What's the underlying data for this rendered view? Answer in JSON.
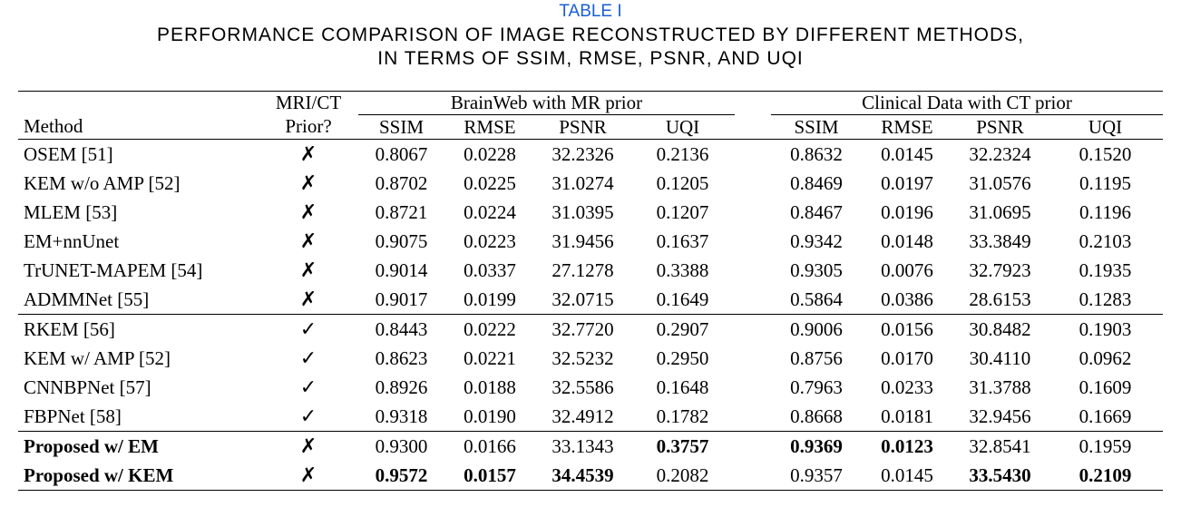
{
  "caption": {
    "label": "TABLE I",
    "title_lines": [
      "PERFORMANCE COMPARISON OF IMAGE RECONSTRUCTED BY DIFFERENT METHODS,",
      "IN TERMS OF SSIM, RMSE, PSNR, AND UQI"
    ]
  },
  "table": {
    "header": {
      "row1": {
        "prior": "MRI/CT",
        "groups": [
          "BrainWeb with MR prior",
          "Clinical Data with CT prior"
        ]
      },
      "row2": {
        "method": "Method",
        "prior": "Prior?",
        "metrics": [
          "SSIM",
          "RMSE",
          "PSNR",
          "UQI",
          "SSIM",
          "RMSE",
          "PSNR",
          "UQI"
        ]
      }
    },
    "rows": [
      {
        "method": "OSEM [51]",
        "prior": "✗",
        "values": [
          "0.8067",
          "0.0228",
          "32.2326",
          "0.2136",
          "0.8632",
          "0.0145",
          "32.2324",
          "0.1520"
        ]
      },
      {
        "method": "KEM w/o AMP [52]",
        "prior": "✗",
        "values": [
          "0.8702",
          "0.0225",
          "31.0274",
          "0.1205",
          "0.8469",
          "0.0197",
          "31.0576",
          "0.1195"
        ]
      },
      {
        "method": "MLEM [53]",
        "prior": "✗",
        "values": [
          "0.8721",
          "0.0224",
          "31.0395",
          "0.1207",
          "0.8467",
          "0.0196",
          "31.0695",
          "0.1196"
        ]
      },
      {
        "method": "EM+nnUnet",
        "prior": "✗",
        "values": [
          "0.9075",
          "0.0223",
          "31.9456",
          "0.1637",
          "0.9342",
          "0.0148",
          "33.3849",
          "0.2103"
        ]
      },
      {
        "method": "TrUNET-MAPEM [54]",
        "prior": "✗",
        "values": [
          "0.9014",
          "0.0337",
          "27.1278",
          "0.3388",
          "0.9305",
          "0.0076",
          "32.7923",
          "0.1935"
        ]
      },
      {
        "method": "ADMMNet [55]",
        "prior": "✗",
        "values": [
          "0.9017",
          "0.0199",
          "32.0715",
          "0.1649",
          "0.5864",
          "0.0386",
          "28.6153",
          "0.1283"
        ]
      },
      {
        "method": "RKEM [56]",
        "prior": "✓",
        "values": [
          "0.8443",
          "0.0222",
          "32.7720",
          "0.2907",
          "0.9006",
          "0.0156",
          "30.8482",
          "0.1903"
        ]
      },
      {
        "method": "KEM w/ AMP [52]",
        "prior": "✓",
        "values": [
          "0.8623",
          "0.0221",
          "32.5232",
          "0.2950",
          "0.8756",
          "0.0170",
          "30.4110",
          "0.0962"
        ]
      },
      {
        "method": "CNNBPNet [57]",
        "prior": "✓",
        "values": [
          "0.8926",
          "0.0188",
          "32.5586",
          "0.1648",
          "0.7963",
          "0.0233",
          "31.3788",
          "0.1609"
        ]
      },
      {
        "method": "FBPNet [58]",
        "prior": "✓",
        "values": [
          "0.9318",
          "0.0190",
          "32.4912",
          "0.1782",
          "0.8668",
          "0.0181",
          "32.9456",
          "0.1669"
        ]
      },
      {
        "method": "Proposed w/ EM",
        "prior": "✗",
        "values": [
          "0.9300",
          "0.0166",
          "33.1343",
          "0.3757",
          "0.9369",
          "0.0123",
          "32.8541",
          "0.1959"
        ]
      },
      {
        "method": "Proposed w/ KEM",
        "prior": "✗",
        "values": [
          "0.9572",
          "0.0157",
          "34.4539",
          "0.2082",
          "0.9357",
          "0.0145",
          "33.5430",
          "0.2109"
        ]
      }
    ]
  }
}
